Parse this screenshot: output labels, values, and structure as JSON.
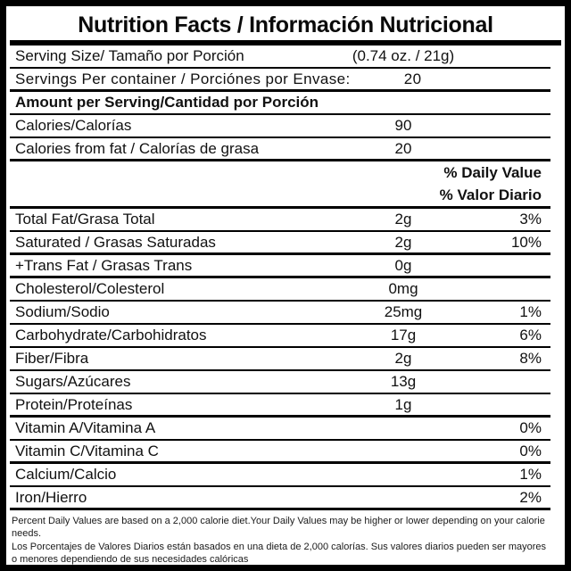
{
  "title": "Nutrition Facts / Información Nutricional",
  "serving_size": {
    "label": "Serving Size/ Tamaño por Porción",
    "value": "(0.74 oz. / 21g)"
  },
  "servings_per_container": {
    "label": "Servings Per container / Porciónes por Envase:",
    "value": "20"
  },
  "amount_per_serving_header": "Amount per Serving/Cantidad por Porción",
  "calories": {
    "label": "Calories/Calorías",
    "value": "90"
  },
  "calories_from_fat": {
    "label": "Calories from fat / Calorías de grasa",
    "value": "20"
  },
  "daily_value_header": {
    "en": "% Daily Value",
    "es": "% Valor Diario"
  },
  "nutrients": [
    {
      "label": "Total Fat/Grasa Total",
      "amount": "2g",
      "percent": "3%",
      "sep": "thin"
    },
    {
      "label": "Saturated / Grasas Saturadas",
      "amount": "2g",
      "percent": "10%",
      "sep": "thick"
    },
    {
      "label": "+Trans Fat / Grasas Trans",
      "amount": "0g",
      "percent": "",
      "sep": "thick"
    },
    {
      "label": "Cholesterol/Colesterol",
      "amount": "0mg",
      "percent": "",
      "sep": "thin"
    },
    {
      "label": "Sodium/Sodio",
      "amount": "25mg",
      "percent": "1%",
      "sep": "thin"
    },
    {
      "label": "Carbohydrate/Carbohidratos",
      "amount": "17g",
      "percent": "6%",
      "sep": "thin"
    },
    {
      "label": "Fiber/Fibra",
      "amount": "2g",
      "percent": "8%",
      "sep": "thin"
    },
    {
      "label": "Sugars/Azúcares",
      "amount": "13g",
      "percent": "",
      "sep": "thin"
    },
    {
      "label": "Protein/Proteínas",
      "amount": "1g",
      "percent": "",
      "sep": "thick"
    },
    {
      "label": "Vitamin A/Vitamina A",
      "amount": "",
      "percent": "0%",
      "sep": "thin"
    },
    {
      "label": "Vitamin C/Vitamina C",
      "amount": "",
      "percent": "0%",
      "sep": "thick"
    },
    {
      "label": "Calcium/Calcio",
      "amount": "",
      "percent": "1%",
      "sep": "thin"
    },
    {
      "label": "Iron/Hierro",
      "amount": "",
      "percent": "2%",
      "sep": "thick"
    }
  ],
  "footnotes": {
    "en": "Percent Daily Values are based on a 2,000 calorie diet.Your Daily Values may be higher or lower depending on your calorie needs.",
    "es": "Los Porcentajes de Valores Diarios están basados en una dieta de 2,000 calorías. Sus valores diarios pueden ser mayores o menores dependiendo de sus necesidades calóricas"
  }
}
